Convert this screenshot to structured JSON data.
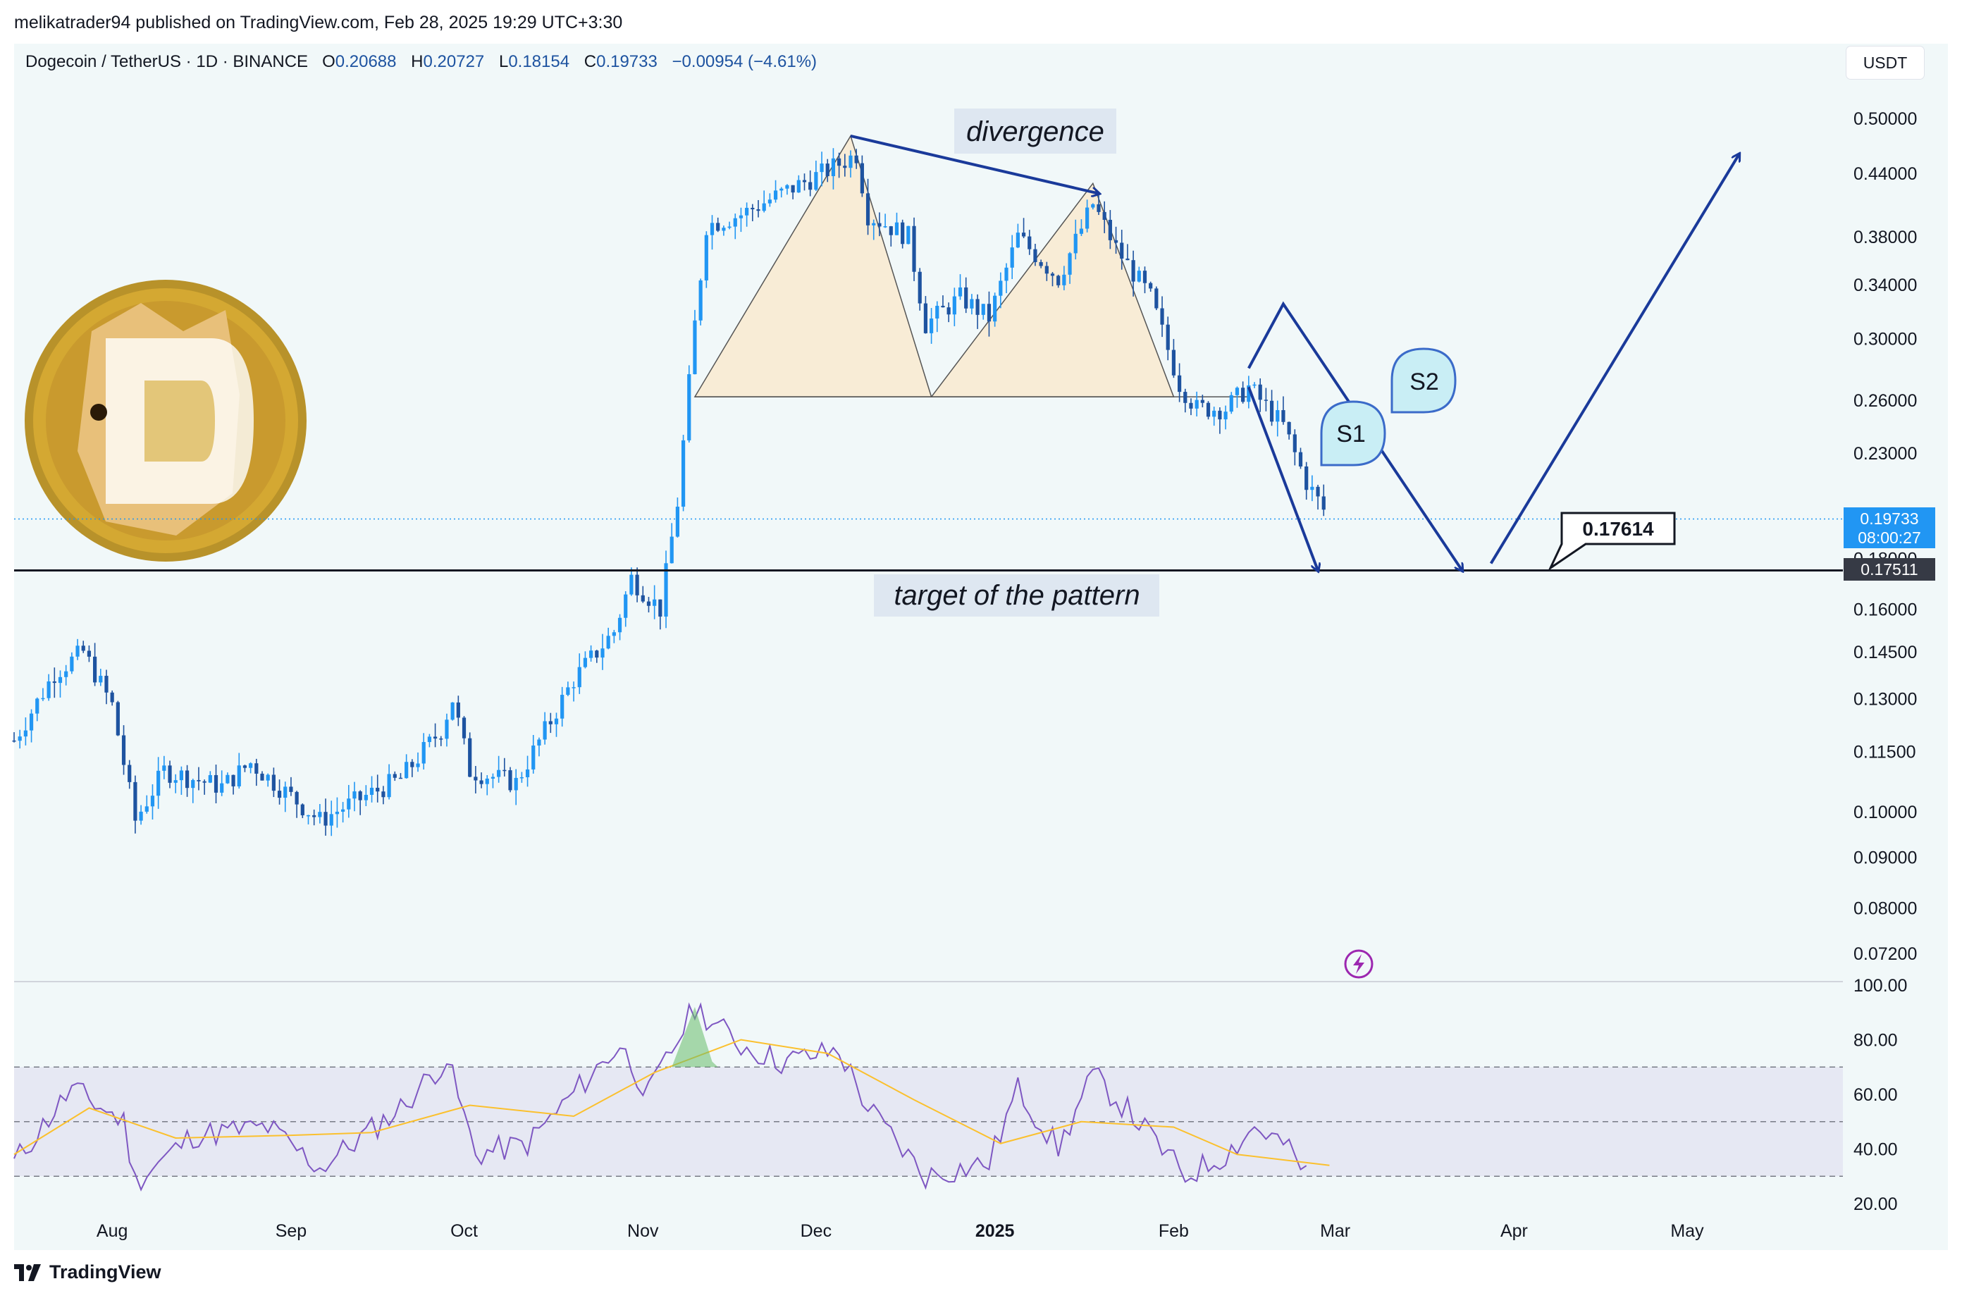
{
  "header": {
    "publisher_line": "melikatrader94 published on TradingView.com, Feb 28, 2025 19:29 UTC+3:30",
    "symbol_line": "Dogecoin / TetherUS · 1D · BINANCE",
    "open_key": "O",
    "open": "0.20688",
    "high_key": "H",
    "high": "0.20727",
    "low_key": "L",
    "low": "0.18154",
    "close_key": "C",
    "close": "0.19733",
    "change": "−0.00954 (−4.61%)",
    "currency": "USDT"
  },
  "footer": {
    "brand": "TradingView"
  },
  "colors": {
    "bg": "#f1f8f9",
    "candle": "#1e53a0",
    "up_candle": "#2196f3",
    "rsi_line": "#7e57c2",
    "rsi_ma": "#fbc02d",
    "annotation": "#1a3a9a",
    "pattern_fill": "#f8ecd6",
    "price_tag": "#2196f3"
  },
  "chart_data": {
    "type": "line",
    "title": "Dogecoin / TetherUS · 1D · BINANCE",
    "price_scale": "log",
    "y_ticks": [
      "0.50000",
      "0.44000",
      "0.38000",
      "0.34000",
      "0.30000",
      "0.26000",
      "0.23000",
      "0.18000",
      "0.16000",
      "0.14500",
      "0.13000",
      "0.11500",
      "0.10000",
      "0.09000",
      "0.08000",
      "0.07200"
    ],
    "x_ticks": [
      "Aug",
      "Sep",
      "Oct",
      "Nov",
      "Dec",
      "2025",
      "Feb",
      "Mar",
      "Apr",
      "May"
    ],
    "series": [
      {
        "values": [
          [
            "2024-07-15",
            0.118
          ],
          [
            "2024-07-22",
            0.138
          ],
          [
            "2024-07-27",
            0.145
          ],
          [
            "2024-08-01",
            0.128
          ],
          [
            "2024-08-05",
            0.098
          ],
          [
            "2024-08-10",
            0.11
          ],
          [
            "2024-08-20",
            0.106
          ],
          [
            "2024-08-25",
            0.112
          ],
          [
            "2024-09-06",
            0.098
          ],
          [
            "2024-09-10",
            0.101
          ],
          [
            "2024-09-20",
            0.108
          ],
          [
            "2024-09-27",
            0.121
          ],
          [
            "2024-09-29",
            0.13
          ],
          [
            "2024-10-02",
            0.11
          ],
          [
            "2024-10-10",
            0.107
          ],
          [
            "2024-10-20",
            0.136
          ],
          [
            "2024-10-27",
            0.152
          ],
          [
            "2024-10-30",
            0.172
          ],
          [
            "2024-11-04",
            0.16
          ],
          [
            "2024-11-07",
            0.205
          ],
          [
            "2024-11-10",
            0.31
          ],
          [
            "2024-11-12",
            0.39
          ],
          [
            "2024-11-18",
            0.4
          ],
          [
            "2024-11-25",
            0.42
          ],
          [
            "2024-12-02",
            0.44
          ],
          [
            "2024-12-08",
            0.46
          ],
          [
            "2024-12-10",
            0.4
          ],
          [
            "2024-12-17",
            0.38
          ],
          [
            "2024-12-20",
            0.31
          ],
          [
            "2024-12-26",
            0.33
          ],
          [
            "2024-12-31",
            0.315
          ],
          [
            "2025-01-05",
            0.38
          ],
          [
            "2025-01-12",
            0.345
          ],
          [
            "2025-01-18",
            0.41
          ],
          [
            "2025-01-22",
            0.37
          ],
          [
            "2025-01-28",
            0.33
          ],
          [
            "2025-02-02",
            0.27
          ],
          [
            "2025-02-05",
            0.255
          ],
          [
            "2025-02-10",
            0.255
          ],
          [
            "2025-02-14",
            0.268
          ],
          [
            "2025-02-20",
            0.245
          ],
          [
            "2025-02-24",
            0.215
          ],
          [
            "2025-02-28",
            0.19733
          ]
        ]
      }
    ],
    "current_price": "0.19733",
    "countdown": "08:00:27",
    "target_level": "0.17511",
    "callout_price": "0.17614",
    "annotations": [
      "divergence",
      "target of the pattern",
      "S1",
      "S2"
    ],
    "rsi": {
      "y_ticks": [
        "100.00",
        "80.00",
        "60.00",
        "40.00",
        "20.00"
      ],
      "upper_band": 70,
      "mid_band": 50,
      "lower_band": 30,
      "values": [
        [
          "2024-07-15",
          35
        ],
        [
          "2024-07-25",
          62
        ],
        [
          "2024-08-03",
          50
        ],
        [
          "2024-08-05",
          28
        ],
        [
          "2024-08-15",
          45
        ],
        [
          "2024-08-28",
          48
        ],
        [
          "2024-09-06",
          33
        ],
        [
          "2024-09-20",
          55
        ],
        [
          "2024-09-28",
          73
        ],
        [
          "2024-10-03",
          38
        ],
        [
          "2024-10-12",
          42
        ],
        [
          "2024-10-22",
          65
        ],
        [
          "2024-10-28",
          78
        ],
        [
          "2024-11-02",
          60
        ],
        [
          "2024-11-10",
          92
        ],
        [
          "2024-11-18",
          78
        ],
        [
          "2024-11-25",
          72
        ],
        [
          "2024-12-05",
          76
        ],
        [
          "2024-12-10",
          55
        ],
        [
          "2024-12-20",
          30
        ],
        [
          "2024-12-31",
          35
        ],
        [
          "2025-01-05",
          62
        ],
        [
          "2025-01-12",
          40
        ],
        [
          "2025-01-18",
          67
        ],
        [
          "2025-01-25",
          52
        ],
        [
          "2025-02-03",
          30
        ],
        [
          "2025-02-10",
          38
        ],
        [
          "2025-02-15",
          48
        ],
        [
          "2025-02-20",
          42
        ],
        [
          "2025-02-25",
          28
        ]
      ],
      "ma_values": [
        [
          "2024-07-15",
          38
        ],
        [
          "2024-07-28",
          55
        ],
        [
          "2024-08-12",
          44
        ],
        [
          "2024-09-01",
          45
        ],
        [
          "2024-09-15",
          46
        ],
        [
          "2024-10-02",
          56
        ],
        [
          "2024-10-20",
          52
        ],
        [
          "2024-11-03",
          68
        ],
        [
          "2024-11-18",
          80
        ],
        [
          "2024-12-03",
          75
        ],
        [
          "2024-12-18",
          58
        ],
        [
          "2025-01-02",
          42
        ],
        [
          "2025-01-16",
          50
        ],
        [
          "2025-02-01",
          48
        ],
        [
          "2025-02-12",
          38
        ],
        [
          "2025-02-28",
          34
        ]
      ]
    }
  }
}
